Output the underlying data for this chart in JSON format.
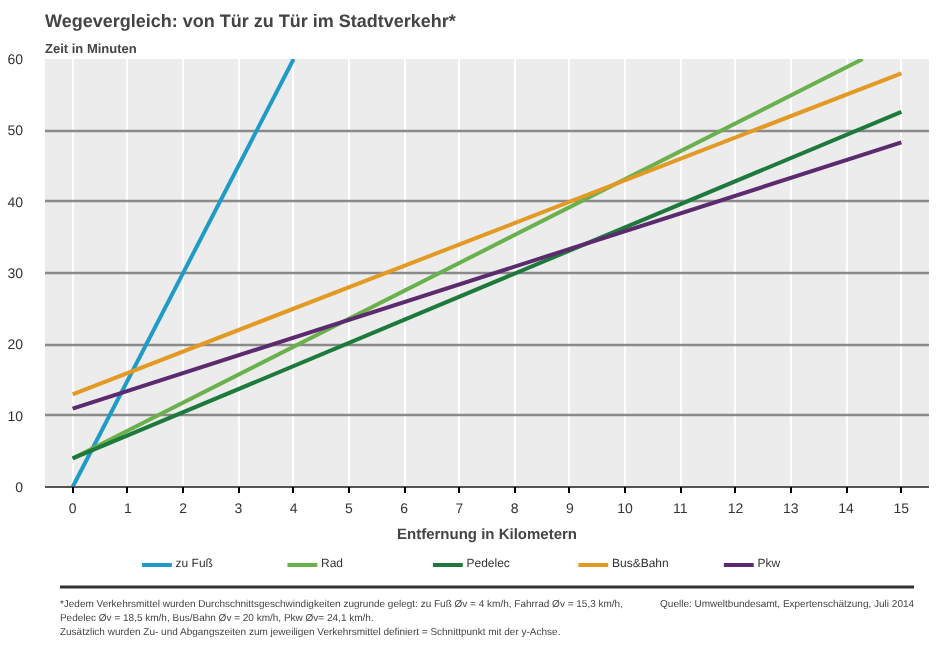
{
  "chart_data": {
    "type": "line",
    "title": "Wegevergleich: von Tür zu Tür im Stadtverkehr*",
    "xlabel": "Entfernung in Kilometern",
    "ylabel": "Zeit in Minuten",
    "xlim": [
      -0.5,
      15.5
    ],
    "ylim": [
      0,
      60
    ],
    "xticks": [
      0,
      1,
      2,
      3,
      4,
      5,
      6,
      7,
      8,
      9,
      10,
      11,
      12,
      13,
      14,
      15
    ],
    "yticks": [
      0,
      10,
      20,
      30,
      40,
      50,
      60
    ],
    "grid": true,
    "legend": "bottom",
    "marker": "none",
    "line_style": "solid",
    "series": [
      {
        "name": "zu Fuß",
        "color": "#1f9bc8",
        "x": [
          0,
          4
        ],
        "values": [
          0,
          60
        ]
      },
      {
        "name": "Rad",
        "color": "#6ab04c",
        "x": [
          0,
          14.3
        ],
        "values": [
          4,
          60
        ]
      },
      {
        "name": "Pedelec",
        "color": "#1e7a3c",
        "x": [
          0,
          15
        ],
        "values": [
          4,
          52.6
        ]
      },
      {
        "name": "Bus&Bahn",
        "color": "#e39a24",
        "x": [
          0,
          15
        ],
        "values": [
          13,
          58
        ]
      },
      {
        "name": "Pkw",
        "color": "#5c2a6e",
        "x": [
          0,
          15
        ],
        "values": [
          11,
          48.3
        ]
      }
    ],
    "annotations": [
      "*Jedem Verkehrsmittel wurden Durchschnittsgeschwindigkeiten zugrunde gelegt: zu Fuß Øv = 4 km/h, Fahrrad Øv = 15,3 km/h,",
      "Pedelec Øv = 18,5 km/h, Bus/Bahn Øv = 20 km/h, Pkw Øv= 24,1 km/h.",
      "Zusätzlich wurden Zu- und Abgangszeiten zum jeweiligen Verkehrsmittel definiert = Schnittpunkt mit der y-Achse.",
      "Quelle: Umweltbundesamt, Expertenschätzung, Juli 2014"
    ]
  }
}
